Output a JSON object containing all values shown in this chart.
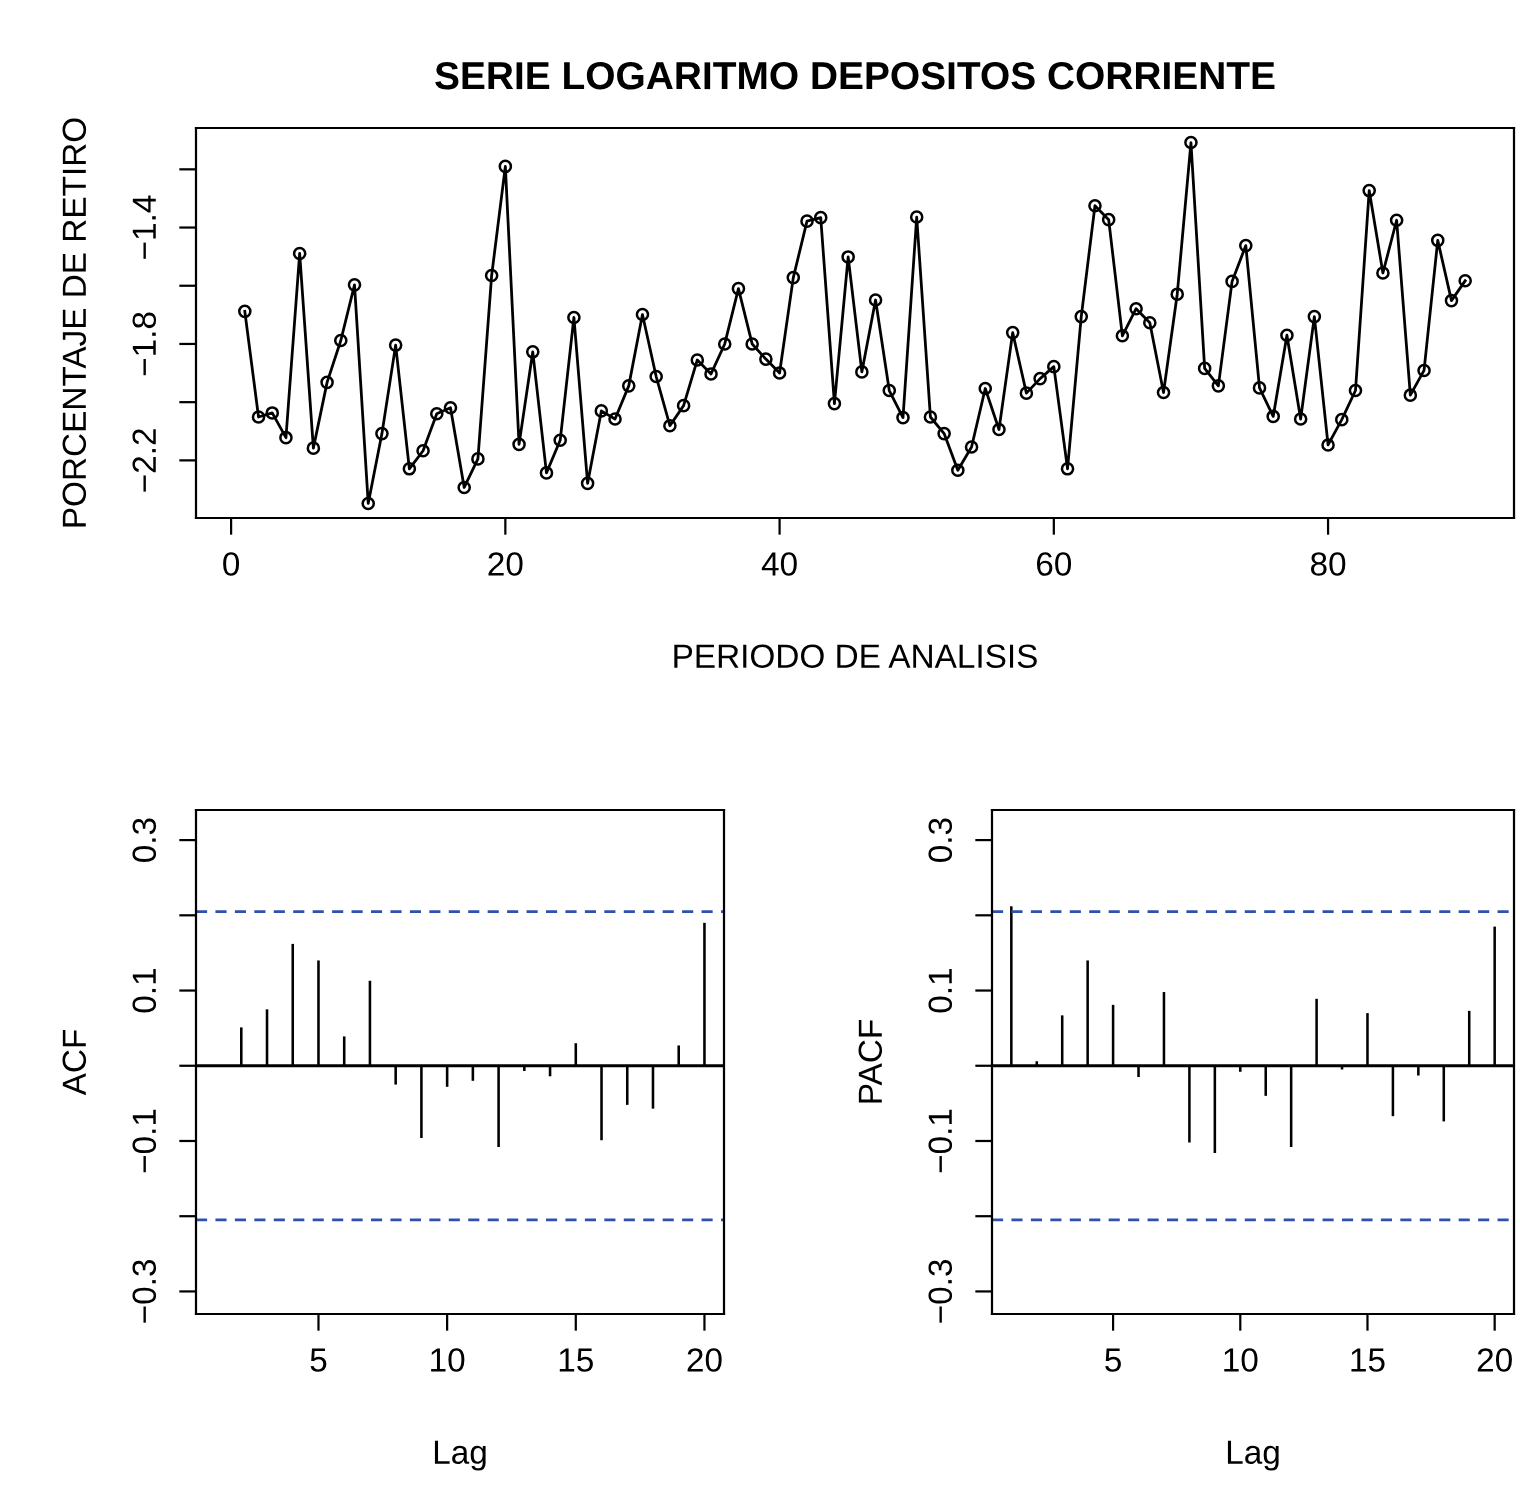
{
  "chart_data": [
    {
      "type": "line",
      "title": "SERIE LOGARITMO DEPOSITOS CORRIENTE",
      "xlabel": "PERIODO DE ANALISIS",
      "ylabel": "PORCENTAJE DE RETIRO",
      "marker": "circle",
      "line_style": "solid",
      "grid": false,
      "legend": false,
      "x": [
        1,
        2,
        3,
        4,
        5,
        6,
        7,
        8,
        9,
        10,
        11,
        12,
        13,
        14,
        15,
        16,
        17,
        18,
        19,
        20,
        21,
        22,
        23,
        24,
        25,
        26,
        27,
        28,
        29,
        30,
        31,
        32,
        33,
        34,
        35,
        36,
        37,
        38,
        39,
        40,
        41,
        42,
        43,
        44,
        45,
        46,
        47,
        48,
        49,
        50,
        51,
        52,
        53,
        54,
        55,
        56,
        57,
        58,
        59,
        60,
        61,
        62,
        63,
        64,
        65,
        66,
        67,
        68,
        69,
        70,
        71,
        72,
        73,
        74,
        75,
        76,
        77,
        78,
        79,
        80,
        81,
        82,
        83,
        84,
        85,
        86,
        87,
        88,
        89,
        90
      ],
      "series": [
        {
          "color": "#000000",
          "values": [
            -1.688,
            -2.051,
            -2.037,
            -2.122,
            -1.489,
            -2.158,
            -1.932,
            -1.788,
            -1.597,
            -2.348,
            -2.108,
            -1.804,
            -2.229,
            -2.167,
            -2.04,
            -2.019,
            -2.293,
            -2.195,
            -1.565,
            -1.19,
            -2.145,
            -1.827,
            -2.243,
            -2.131,
            -1.709,
            -2.279,
            -2.03,
            -2.058,
            -1.944,
            -1.699,
            -1.912,
            -2.081,
            -2.012,
            -1.855,
            -1.903,
            -1.8,
            -1.61,
            -1.8,
            -1.852,
            -1.9,
            -1.572,
            -1.378,
            -1.366,
            -2.005,
            -1.501,
            -1.896,
            -1.649,
            -1.96,
            -2.053,
            -1.364,
            -2.051,
            -2.108,
            -2.234,
            -2.154,
            -1.953,
            -2.094,
            -1.761,
            -1.969,
            -1.919,
            -1.878,
            -2.229,
            -1.706,
            -1.325,
            -1.373,
            -1.772,
            -1.679,
            -1.727,
            -1.967,
            -1.629,
            -1.108,
            -1.884,
            -1.944,
            -1.585,
            -1.462,
            -1.951,
            -2.049,
            -1.77,
            -2.058,
            -1.706,
            -2.147,
            -2.06,
            -1.96,
            -1.273,
            -1.556,
            -1.375,
            -1.976,
            -1.891,
            -1.444,
            -1.651,
            -1.583
          ]
        }
      ],
      "xlim": [
        -2.56,
        93.56
      ],
      "xticks": [
        0,
        20,
        40,
        60,
        80
      ],
      "ylim": [
        -2.398,
        -1.058
      ],
      "yticks": [
        {
          "value": -1.2,
          "label": null
        },
        {
          "value": -1.4,
          "label": "−1.4"
        },
        {
          "value": -1.6,
          "label": null
        },
        {
          "value": -1.8,
          "label": "−1.8"
        },
        {
          "value": -2.0,
          "label": null
        },
        {
          "value": -2.2,
          "label": "−2.2"
        }
      ]
    },
    {
      "type": "bar",
      "xlabel": "Lag",
      "ylabel": "ACF",
      "grid": false,
      "legend": false,
      "x": [
        1,
        2,
        3,
        4,
        5,
        6,
        7,
        8,
        9,
        10,
        11,
        12,
        13,
        14,
        15,
        16,
        17,
        18,
        19,
        20
      ],
      "series": [
        {
          "color": "#000000",
          "values": [
            0.0,
            0.051,
            0.075,
            0.162,
            0.14,
            0.039,
            0.113,
            -0.025,
            -0.096,
            -0.028,
            -0.02,
            -0.108,
            -0.007,
            -0.014,
            0.03,
            -0.099,
            -0.052,
            -0.057,
            0.027,
            0.19
          ]
        }
      ],
      "ref_lines": [
        {
          "axis": "y",
          "value": 0,
          "color": "#000000",
          "line_style": "solid"
        },
        {
          "axis": "y",
          "value": 0.205,
          "color": "#3050b0",
          "line_style": "dashed"
        },
        {
          "axis": "y",
          "value": -0.205,
          "color": "#3050b0",
          "line_style": "dashed"
        }
      ],
      "xlim": [
        0.24,
        20.76
      ],
      "xticks": [
        5,
        10,
        15,
        20
      ],
      "ylim": [
        -0.33,
        0.34
      ],
      "yticks": [
        {
          "value": 0.3,
          "label": "0.3"
        },
        {
          "value": 0.2,
          "label": null
        },
        {
          "value": 0.1,
          "label": "0.1"
        },
        {
          "value": 0.0,
          "label": null
        },
        {
          "value": -0.1,
          "label": "−0.1"
        },
        {
          "value": -0.2,
          "label": null
        },
        {
          "value": -0.3,
          "label": "−0.3"
        }
      ]
    },
    {
      "type": "bar",
      "xlabel": "Lag",
      "ylabel": "PACF",
      "grid": false,
      "legend": false,
      "x": [
        1,
        2,
        3,
        4,
        5,
        6,
        7,
        8,
        9,
        10,
        11,
        12,
        13,
        14,
        15,
        16,
        17,
        18,
        19,
        20
      ],
      "series": [
        {
          "color": "#000000",
          "values": [
            0.212,
            0.006,
            0.067,
            0.14,
            0.081,
            -0.015,
            0.098,
            -0.102,
            -0.116,
            -0.008,
            -0.04,
            -0.108,
            0.089,
            -0.005,
            0.07,
            -0.067,
            -0.013,
            -0.074,
            0.073,
            0.185
          ]
        }
      ],
      "ref_lines": [
        {
          "axis": "y",
          "value": 0,
          "color": "#000000",
          "line_style": "solid"
        },
        {
          "axis": "y",
          "value": 0.205,
          "color": "#3050b0",
          "line_style": "dashed"
        },
        {
          "axis": "y",
          "value": -0.205,
          "color": "#3050b0",
          "line_style": "dashed"
        }
      ],
      "xlim": [
        0.24,
        20.76
      ],
      "xticks": [
        5,
        10,
        15,
        20
      ],
      "ylim": [
        -0.33,
        0.34
      ],
      "yticks": [
        {
          "value": 0.3,
          "label": "0.3"
        },
        {
          "value": 0.2,
          "label": null
        },
        {
          "value": 0.1,
          "label": "0.1"
        },
        {
          "value": 0.0,
          "label": null
        },
        {
          "value": -0.1,
          "label": "−0.1"
        },
        {
          "value": -0.2,
          "label": null
        },
        {
          "value": -0.3,
          "label": "−0.3"
        }
      ]
    }
  ]
}
